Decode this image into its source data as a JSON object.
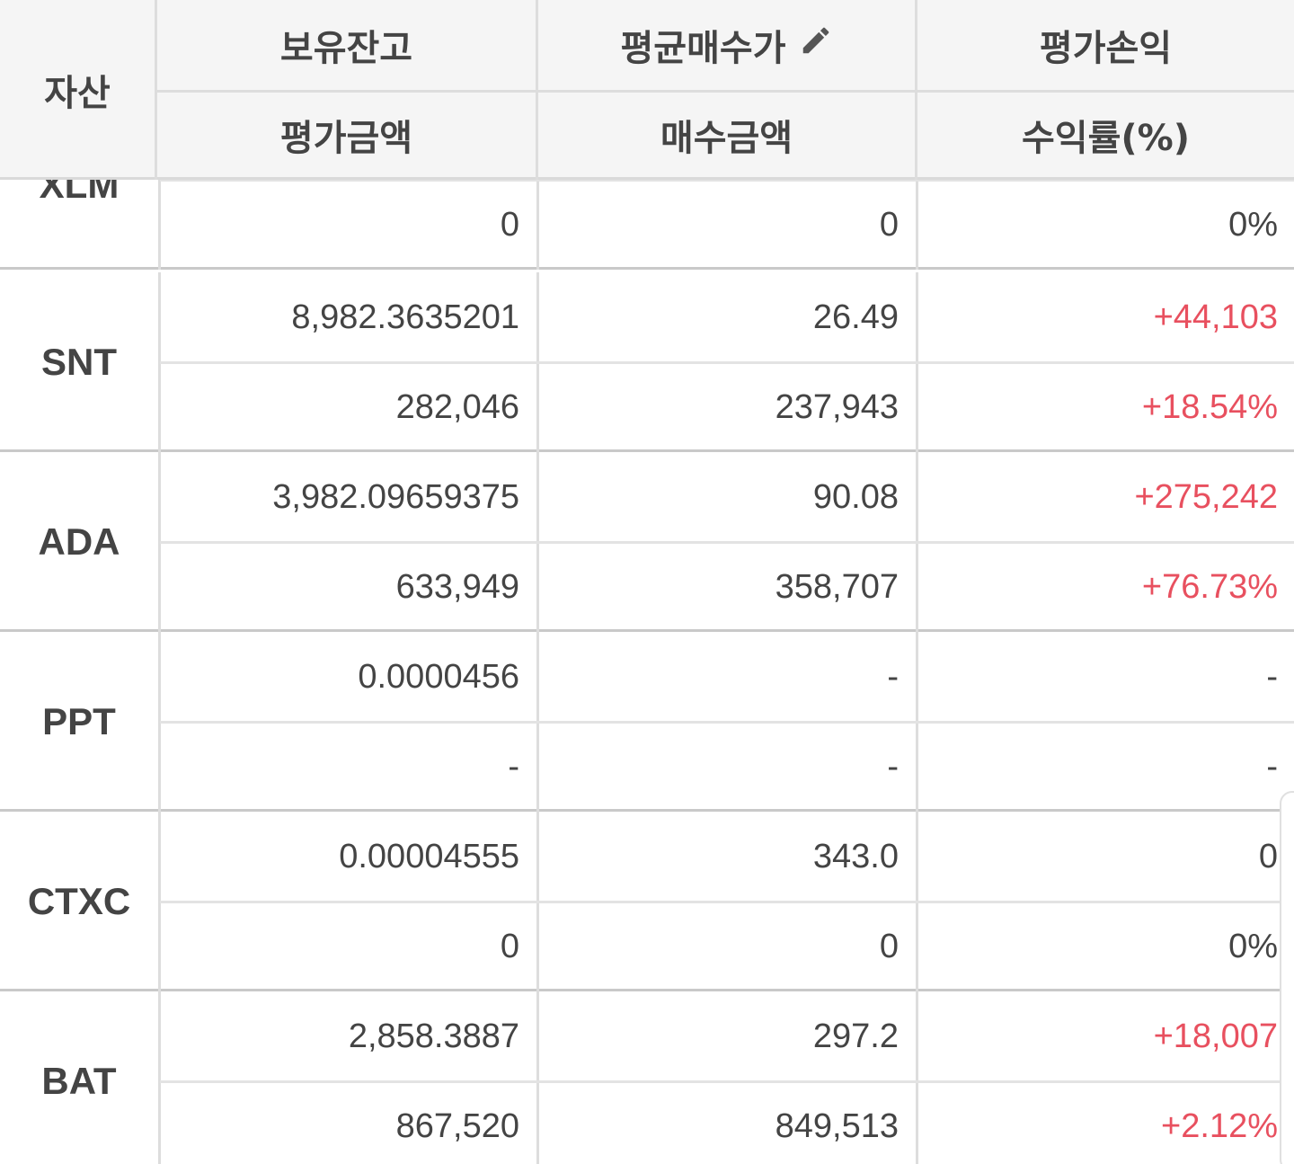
{
  "header": {
    "asset": "자산",
    "balance": "보유잔고",
    "avg_price": "평균매수가",
    "pnl": "평가손익",
    "eval_amount": "평가금액",
    "buy_amount": "매수금액",
    "return_rate": "수익률(%)",
    "edit_icon": "pencil-icon"
  },
  "rows": [
    {
      "asset": "XLM",
      "balance": "",
      "avg_price": "",
      "pnl": "",
      "eval_amount": "0",
      "buy_amount": "0",
      "return_rate": "0%"
    },
    {
      "asset": "SNT",
      "balance": "8,982.3635201",
      "avg_price": "26.49",
      "pnl": "+44,103",
      "eval_amount": "282,046",
      "buy_amount": "237,943",
      "return_rate": "+18.54%"
    },
    {
      "asset": "ADA",
      "balance": "3,982.09659375",
      "avg_price": "90.08",
      "pnl": "+275,242",
      "eval_amount": "633,949",
      "buy_amount": "358,707",
      "return_rate": "+76.73%"
    },
    {
      "asset": "PPT",
      "balance": "0.0000456",
      "avg_price": "-",
      "pnl": "-",
      "eval_amount": "-",
      "buy_amount": "-",
      "return_rate": "-"
    },
    {
      "asset": "CTXC",
      "balance": "0.00004555",
      "avg_price": "343.0",
      "pnl": "0",
      "eval_amount": "0",
      "buy_amount": "0",
      "return_rate": "0%"
    },
    {
      "asset": "BAT",
      "balance": "2,858.3887",
      "avg_price": "297.2",
      "pnl": "+18,007",
      "eval_amount": "867,520",
      "buy_amount": "849,513",
      "return_rate": "+2.12%"
    }
  ],
  "colors": {
    "positive": "#e8505f",
    "text": "#444444",
    "header_bg": "#f5f5f5"
  }
}
